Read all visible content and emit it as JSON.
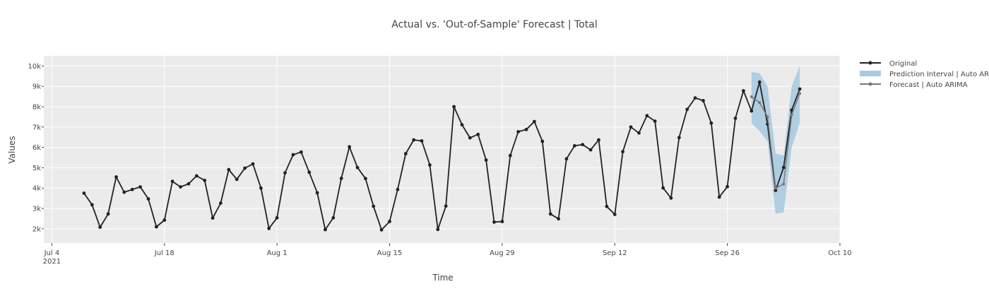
{
  "chart_data": {
    "type": "line",
    "title": "Actual vs. 'Out-of-Sample' Forecast | Total",
    "xlabel": "Time",
    "ylabel": "Values",
    "xlim": [
      "2021-07-03",
      "2021-10-10"
    ],
    "ylim": [
      1300,
      10500
    ],
    "x_ticks": [
      {
        "date": "2021-07-04",
        "label": "Jul 4",
        "sublabel": "2021"
      },
      {
        "date": "2021-07-18",
        "label": "Jul 18"
      },
      {
        "date": "2021-08-01",
        "label": "Aug 1"
      },
      {
        "date": "2021-08-15",
        "label": "Aug 15"
      },
      {
        "date": "2021-08-29",
        "label": "Aug 29"
      },
      {
        "date": "2021-09-12",
        "label": "Sep 12"
      },
      {
        "date": "2021-09-26",
        "label": "Sep 26"
      },
      {
        "date": "2021-10-10",
        "label": "Oct 10"
      }
    ],
    "y_ticks": [
      {
        "value": 2000,
        "label": "2k"
      },
      {
        "value": 3000,
        "label": "3k"
      },
      {
        "value": 4000,
        "label": "4k"
      },
      {
        "value": 5000,
        "label": "5k"
      },
      {
        "value": 6000,
        "label": "6k"
      },
      {
        "value": 7000,
        "label": "7k"
      },
      {
        "value": 8000,
        "label": "8k"
      },
      {
        "value": 9000,
        "label": "9k"
      },
      {
        "value": 10000,
        "label": "10k"
      }
    ],
    "grid": true,
    "legend_position": "right",
    "series": [
      {
        "name": "Original",
        "color": "#222222",
        "x": [
          "2021-07-08",
          "2021-07-09",
          "2021-07-10",
          "2021-07-11",
          "2021-07-12",
          "2021-07-13",
          "2021-07-14",
          "2021-07-15",
          "2021-07-16",
          "2021-07-17",
          "2021-07-18",
          "2021-07-19",
          "2021-07-20",
          "2021-07-21",
          "2021-07-22",
          "2021-07-23",
          "2021-07-24",
          "2021-07-25",
          "2021-07-26",
          "2021-07-27",
          "2021-07-28",
          "2021-07-29",
          "2021-07-30",
          "2021-07-31",
          "2021-08-01",
          "2021-08-02",
          "2021-08-03",
          "2021-08-04",
          "2021-08-05",
          "2021-08-06",
          "2021-08-07",
          "2021-08-08",
          "2021-08-09",
          "2021-08-10",
          "2021-08-11",
          "2021-08-12",
          "2021-08-13",
          "2021-08-14",
          "2021-08-15",
          "2021-08-16",
          "2021-08-17",
          "2021-08-18",
          "2021-08-19",
          "2021-08-20",
          "2021-08-21",
          "2021-08-22",
          "2021-08-23",
          "2021-08-24",
          "2021-08-25",
          "2021-08-26",
          "2021-08-27",
          "2021-08-28",
          "2021-08-29",
          "2021-08-30",
          "2021-08-31",
          "2021-09-01",
          "2021-09-02",
          "2021-09-03",
          "2021-09-04",
          "2021-09-05",
          "2021-09-06",
          "2021-09-07",
          "2021-09-08",
          "2021-09-09",
          "2021-09-10",
          "2021-09-11",
          "2021-09-12",
          "2021-09-13",
          "2021-09-14",
          "2021-09-15",
          "2021-09-16",
          "2021-09-17",
          "2021-09-18",
          "2021-09-19",
          "2021-09-20",
          "2021-09-21",
          "2021-09-22",
          "2021-09-23",
          "2021-09-24",
          "2021-09-25",
          "2021-09-26",
          "2021-09-27",
          "2021-09-28",
          "2021-09-29",
          "2021-09-30",
          "2021-10-01",
          "2021-10-02",
          "2021-10-03",
          "2021-10-04",
          "2021-10-05"
        ],
        "y": [
          3750,
          3180,
          2080,
          2730,
          4550,
          3800,
          3930,
          4060,
          3470,
          2100,
          2430,
          4330,
          4060,
          4210,
          4600,
          4380,
          2530,
          3260,
          4910,
          4430,
          4980,
          5190,
          4000,
          2020,
          2540,
          4750,
          5640,
          5770,
          4780,
          3770,
          1960,
          2540,
          4480,
          6030,
          5010,
          4470,
          3110,
          1950,
          2360,
          3930,
          5690,
          6370,
          6320,
          5140,
          1970,
          3120,
          8000,
          7110,
          6470,
          6640,
          5380,
          2330,
          2360,
          5600,
          6770,
          6880,
          7270,
          6300,
          2730,
          2490,
          5440,
          6080,
          6140,
          5880,
          6370,
          3100,
          2710,
          5790,
          7000,
          6710,
          7560,
          7290,
          4010,
          3510,
          6480,
          7870,
          8430,
          8300,
          7190,
          3560,
          4070,
          7430,
          8780,
          7790,
          9210,
          7140,
          3890,
          5010,
          7830,
          8870
        ]
      },
      {
        "name": "Forecast | Auto ARIMA",
        "color": "#777777",
        "x": [
          "2021-09-29",
          "2021-09-30",
          "2021-10-01",
          "2021-10-02",
          "2021-10-03",
          "2021-10-04",
          "2021-10-05"
        ],
        "y": [
          8490,
          8200,
          7500,
          4000,
          4200,
          7600,
          8650
        ]
      }
    ],
    "interval": {
      "name": "Prediction Interval | Auto ARIMA",
      "color": "#a8cbe0",
      "x": [
        "2021-09-29",
        "2021-09-30",
        "2021-10-01",
        "2021-10-02",
        "2021-10-03",
        "2021-10-04",
        "2021-10-05"
      ],
      "upper": [
        9700,
        9650,
        9000,
        5700,
        5600,
        9000,
        10000
      ],
      "lower": [
        7200,
        6800,
        6300,
        2750,
        2800,
        6000,
        7200
      ]
    }
  },
  "legend": [
    {
      "label": "Original"
    },
    {
      "label": "Prediction Interval | Auto ARIMA"
    },
    {
      "label": "Forecast | Auto ARIMA"
    }
  ]
}
